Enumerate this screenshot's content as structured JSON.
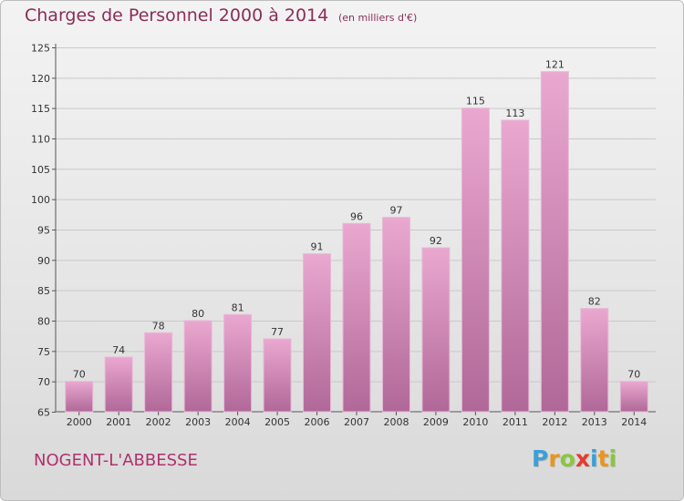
{
  "title": "Charges de Personnel 2000 à 2014",
  "subtitle": "(en milliers d'€)",
  "commune": "NOGENT-L'ABBESSE",
  "logo": {
    "letters": [
      "P",
      "r",
      "o",
      "x",
      "i",
      "t",
      "i"
    ],
    "colors": [
      "#3aa0d8",
      "#e8961e",
      "#8cc63f",
      "#e63a2e",
      "#3aa0d8",
      "#e8961e",
      "#8cc63f"
    ]
  },
  "colors": {
    "bar_light": "#eaa8d0",
    "bar_dark": "#b06898",
    "title": "#8a2d58"
  },
  "chart_data": {
    "type": "bar",
    "categories": [
      "2000",
      "2001",
      "2002",
      "2003",
      "2004",
      "2005",
      "2006",
      "2007",
      "2008",
      "2009",
      "2010",
      "2011",
      "2012",
      "2013",
      "2014"
    ],
    "values": [
      70,
      74,
      78,
      80,
      81,
      77,
      91,
      96,
      97,
      92,
      115,
      113,
      121,
      82,
      70
    ],
    "title": "Charges de Personnel 2000 à 2014",
    "xlabel": "",
    "ylabel": "",
    "ylim": [
      65,
      125
    ],
    "yticks": [
      65,
      70,
      75,
      80,
      85,
      90,
      95,
      100,
      105,
      110,
      115,
      120,
      125
    ],
    "grid": true,
    "data_labels": true
  }
}
